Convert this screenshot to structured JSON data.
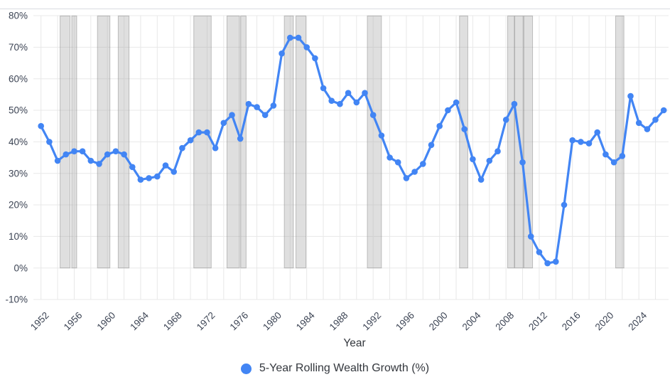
{
  "chart_data": {
    "type": "line",
    "title": "",
    "xlabel": "Year",
    "series_label": "5-Year Rolling Wealth Growth (%)",
    "legend_position": "bottom",
    "grid": true,
    "ylim": [
      -10,
      80
    ],
    "xlim": [
      1951,
      2027.8
    ],
    "ytick_values": [
      80,
      70,
      60,
      50,
      40,
      30,
      20,
      10,
      0,
      -10
    ],
    "ytick_labels": [
      "80%",
      "70%",
      "60%",
      "50%",
      "40%",
      "30%",
      "20%",
      "10%",
      "0%",
      "-10%"
    ],
    "xticks": [
      1952,
      1956,
      1960,
      1964,
      1968,
      1972,
      1976,
      1980,
      1984,
      1988,
      1992,
      1996,
      2000,
      2004,
      2008,
      2012,
      2016,
      2020,
      2024
    ],
    "years": [
      1952,
      1953,
      1954,
      1955,
      1956,
      1957,
      1958,
      1959,
      1960,
      1961,
      1962,
      1963,
      1964,
      1965,
      1966,
      1967,
      1968,
      1969,
      1970,
      1971,
      1972,
      1973,
      1974,
      1975,
      1976,
      1977,
      1978,
      1979,
      1980,
      1981,
      1982,
      1983,
      1984,
      1985,
      1986,
      1987,
      1988,
      1989,
      1990,
      1991,
      1992,
      1993,
      1994,
      1995,
      1996,
      1997,
      1998,
      1999,
      2000,
      2001,
      2002,
      2003,
      2004,
      2005,
      2006,
      2007,
      2008,
      2009,
      2010,
      2011,
      2012,
      2013,
      2014,
      2015,
      2016,
      2017,
      2018,
      2019,
      2020,
      2021,
      2022,
      2023,
      2024,
      2025,
      2026,
      2027
    ],
    "values": [
      45,
      40,
      34,
      36,
      37,
      37,
      34,
      33,
      36,
      37,
      36,
      32,
      28,
      28.5,
      29,
      32.5,
      30.5,
      38,
      40.5,
      43,
      43,
      38,
      46,
      48.5,
      41,
      52,
      51,
      48.5,
      51.5,
      68,
      73,
      73,
      70,
      66.5,
      57,
      53,
      52,
      55.5,
      52.5,
      55.5,
      48.5,
      42,
      35,
      33.5,
      28.5,
      30.5,
      33,
      39,
      45,
      50,
      52.5,
      44,
      34.5,
      28,
      34,
      37,
      47,
      52,
      33.5,
      10,
      5,
      1.5,
      2,
      20,
      40.5,
      40,
      39.5,
      43,
      36,
      33.5,
      35.5,
      54.5,
      46,
      44,
      47,
      50
    ],
    "recession_bands": [
      [
        1954.3,
        1955.5
      ],
      [
        1955.7,
        1956.3
      ],
      [
        1958.8,
        1960.3
      ],
      [
        1961.3,
        1962.6
      ],
      [
        1970.4,
        1972.5
      ],
      [
        1974.4,
        1975.9
      ],
      [
        1976.05,
        1976.7
      ],
      [
        1981.3,
        1982.4
      ],
      [
        1982.7,
        1983.9
      ],
      [
        1991.3,
        1993.0
      ],
      [
        2002.4,
        2003.4
      ],
      [
        2008.2,
        2009.0
      ],
      [
        2009.05,
        2010.1
      ],
      [
        2010.15,
        2011.2
      ],
      [
        2021.2,
        2022.2
      ]
    ],
    "colors": {
      "accent": "#4285f4",
      "grid": "#e8e8e8",
      "band": "#aaaaaa",
      "text": "#3c4454"
    }
  }
}
